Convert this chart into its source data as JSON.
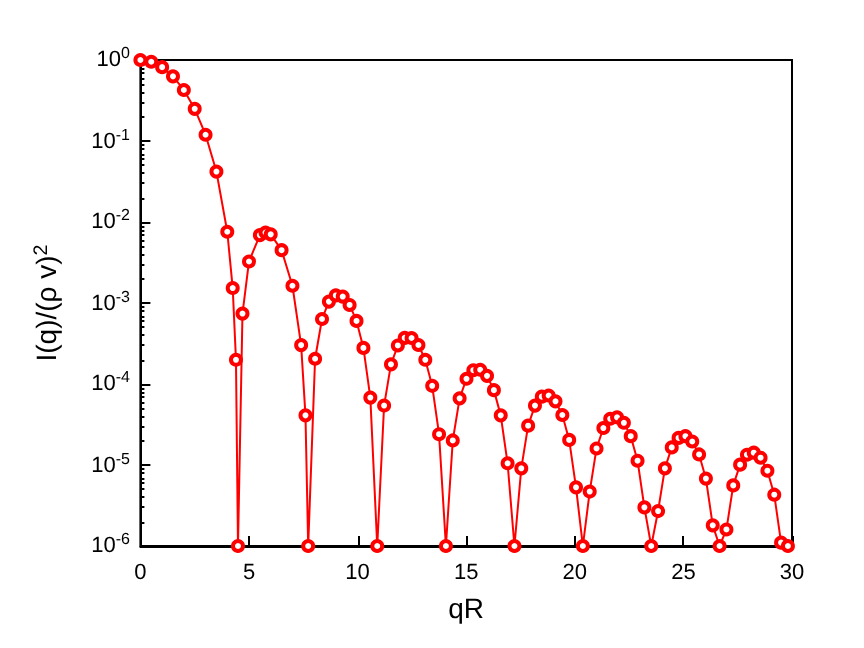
{
  "chart_data": {
    "type": "line",
    "xlabel": "qR",
    "ylabel": "I(q)/(ρ v)$^{2}$",
    "log": "y",
    "marker": "circle",
    "line_style": "solid",
    "grid": false,
    "xlim": [
      0,
      30
    ],
    "xticks": [
      0,
      5,
      10,
      15,
      20,
      25,
      30
    ],
    "ylim": [
      1e-06,
      1
    ],
    "yticks": [
      {
        "value": 1e-06,
        "label": "10$^{-6}$"
      },
      {
        "value": 1e-05,
        "label": "10$^{-5}$"
      },
      {
        "value": 0.0001,
        "label": "10$^{-4}$"
      },
      {
        "value": 0.001,
        "label": "10$^{-3}$"
      },
      {
        "value": 0.01,
        "label": "10$^{-2}$"
      },
      {
        "value": 0.1,
        "label": "10$^{-1}$"
      },
      {
        "value": 1,
        "label": "10$^{0}$"
      }
    ],
    "series": [
      {
        "color": "#ff0000",
        "x": [
          0,
          0.5,
          1,
          1.5,
          2,
          2.5,
          3,
          3.5,
          4,
          4.25,
          4.4,
          4.493,
          4.7,
          5,
          5.5,
          5.76,
          6,
          6.5,
          7,
          7.4,
          7.6,
          7.725,
          8.043,
          8.361,
          8.679,
          8.997,
          9.315,
          9.632,
          9.95,
          10.268,
          10.586,
          10.904,
          11.22,
          11.536,
          11.853,
          12.169,
          12.485,
          12.801,
          13.117,
          13.434,
          13.75,
          14.066,
          14.382,
          14.697,
          15.013,
          15.328,
          15.644,
          15.959,
          16.275,
          16.59,
          16.906,
          17.221,
          17.536,
          17.851,
          18.166,
          18.481,
          18.796,
          19.111,
          19.426,
          19.741,
          20.056,
          20.371,
          20.686,
          21.0,
          21.315,
          21.63,
          21.945,
          22.26,
          22.575,
          22.889,
          23.204,
          23.519,
          23.834,
          24.148,
          24.463,
          24.778,
          25.093,
          25.407,
          25.722,
          26.036,
          26.351,
          26.666,
          26.981,
          27.295,
          27.61,
          27.925,
          28.239,
          28.554,
          28.868,
          29.183,
          29.497,
          29.812
        ],
        "values": [
          1,
          0.951,
          0.8165,
          0.628,
          0.4265,
          0.2495,
          0.1195,
          0.04194,
          0.007584,
          0.00153,
          0.000199,
          1e-06,
          0.00074,
          0.003255,
          0.006891,
          0.007424,
          0.00704,
          0.004489,
          0.001633,
          0.000302,
          4.1e-05,
          1e-06,
          0.000205,
          0.000635,
          0.00104,
          0.00124,
          0.0012,
          0.000946,
          0.000601,
          0.000279,
          6.8e-05,
          1e-06,
          5.42e-05,
          0.000175,
          0.000299,
          0.000371,
          0.00037,
          0.000303,
          0.000199,
          9.5e-05,
          2.4e-05,
          1e-06,
          2.01e-05,
          6.65e-05,
          0.000116,
          0.000148,
          0.00015,
          0.000126,
          8.4e-05,
          4.1e-05,
          1.05e-05,
          1e-06,
          9.1e-06,
          3.06e-05,
          5.41e-05,
          6.98e-05,
          7.21e-05,
          6.11e-05,
          4.14e-05,
          2.04e-05,
          5.3e-06,
          1e-06,
          4.7e-06,
          1.6e-05,
          2.86e-05,
          3.72e-05,
          3.88e-05,
          3.32e-05,
          2.27e-05,
          1.13e-05,
          3e-06,
          1e-06,
          2.7e-06,
          9.1e-06,
          1.65e-05,
          2.16e-05,
          2.27e-05,
          1.95e-05,
          1.35e-05,
          6.8e-06,
          1.8e-06,
          1e-06,
          1.6e-06,
          5.6e-06,
          1.01e-05,
          1.34e-05,
          1.42e-05,
          1.23e-05,
          8.5e-06,
          4.3e-06,
          1.1e-06,
          1e-06
        ]
      }
    ]
  }
}
